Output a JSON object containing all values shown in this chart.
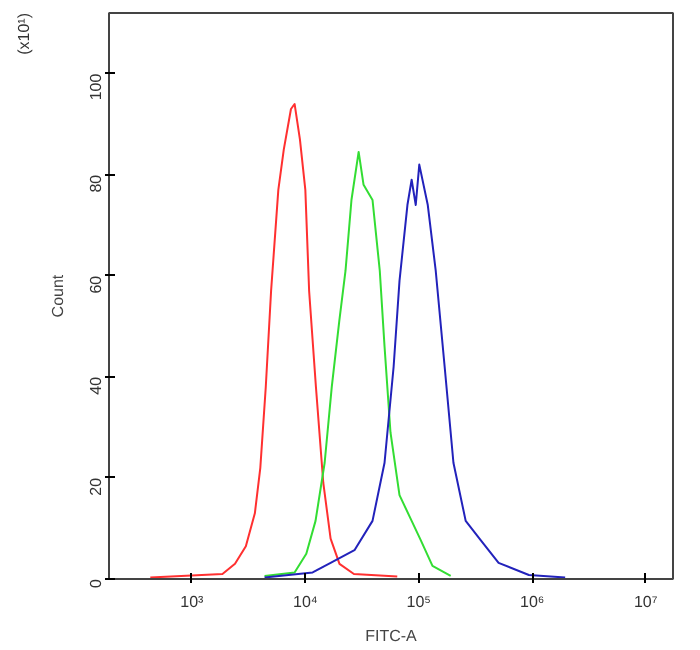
{
  "chart_data": {
    "type": "line",
    "xlabel": "FITC-A",
    "ylabel": "Count",
    "annotations": [
      "(x10¹)"
    ],
    "log": "x",
    "grid": false,
    "marker": "none",
    "line_style": "solid",
    "xlim": [
      186,
      17400000
    ],
    "ylim": [
      0,
      112
    ],
    "xticks": [
      {
        "value": 1000,
        "label": "10³"
      },
      {
        "value": 10000,
        "label": "10⁴"
      },
      {
        "value": 100000,
        "label": "10⁵"
      },
      {
        "value": 1000000,
        "label": "10⁶"
      },
      {
        "value": 10000000,
        "label": "10⁷"
      }
    ],
    "yticks": [
      0,
      20,
      40,
      60,
      80,
      100
    ],
    "series": [
      {
        "color": "#ff3030",
        "x": [
          430,
          1860,
          2400,
          2990,
          3590,
          4010,
          4480,
          4990,
          5780,
          6460,
          7470,
          8040,
          8960,
          10000,
          10800,
          12400,
          14400,
          16700,
          20000,
          26800,
          64600
        ],
        "values": [
          0.3,
          1,
          3,
          6.5,
          13,
          22,
          38,
          57,
          77,
          85,
          93,
          94,
          87,
          77,
          57,
          38,
          19,
          8,
          3,
          1,
          0.5
        ]
      },
      {
        "color": "#33dd33",
        "x": [
          4370,
          8040,
          10200,
          12300,
          14800,
          17100,
          19900,
          22600,
          25500,
          29500,
          32600,
          39100,
          45300,
          49900,
          56300,
          67600,
          86500,
          104000,
          132000,
          191000
        ],
        "values": [
          0.6,
          1.3,
          5,
          11.5,
          23,
          38,
          51,
          61,
          75,
          84.5,
          78,
          75,
          61,
          46,
          29,
          16.6,
          11.5,
          7.7,
          2.6,
          0.6
        ]
      },
      {
        "color": "#2222bb",
        "x": [
          4370,
          11600,
          16700,
          27100,
          39100,
          49900,
          60000,
          67600,
          79400,
          86500,
          94000,
          101000,
          120000,
          141000,
          169000,
          202000,
          259000,
          351000,
          505000,
          934000,
          1950000
        ],
        "values": [
          0.3,
          1.3,
          3.2,
          5.7,
          11.5,
          23,
          42,
          59,
          74,
          79,
          74,
          82,
          74,
          61,
          42,
          23,
          11.5,
          7.7,
          3.2,
          0.8,
          0.3
        ]
      }
    ]
  }
}
